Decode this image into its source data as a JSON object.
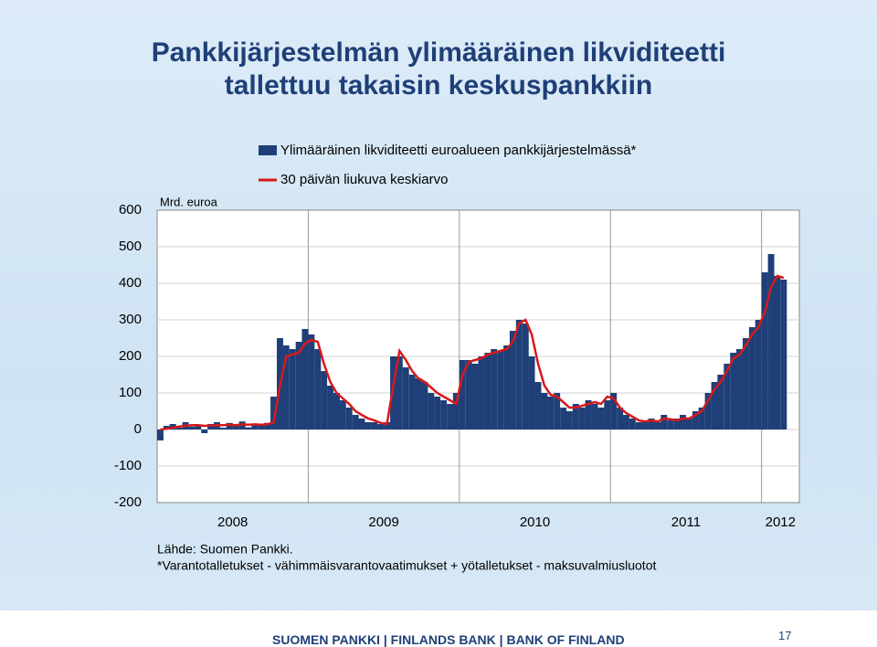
{
  "slide": {
    "title_lines": [
      "Pankkijärjestelmän ylimääräinen likviditeetti",
      "tallettuu takaisin keskuspankkiin"
    ],
    "source": "Lähde: Suomen Pankki.",
    "footnote": "*Varantotalletukset - vähimmäisvarantovaatimukset + yötalletukset - maksuvalmiusluotot",
    "footer": "SUOMEN PANKKI | FINLANDS BANK | BANK OF FINLAND",
    "page_number": "17"
  },
  "chart_data": {
    "type": "bar-line",
    "y_label": "Mrd. euroa",
    "x": [
      2008,
      2008.042,
      2008.083,
      2008.125,
      2008.167,
      2008.208,
      2008.25,
      2008.292,
      2008.333,
      2008.375,
      2008.417,
      2008.458,
      2008.5,
      2008.542,
      2008.583,
      2008.625,
      2008.667,
      2008.708,
      2008.75,
      2008.792,
      2008.833,
      2008.875,
      2008.917,
      2008.958,
      2009,
      2009.042,
      2009.083,
      2009.125,
      2009.167,
      2009.208,
      2009.25,
      2009.292,
      2009.333,
      2009.375,
      2009.417,
      2009.458,
      2009.5,
      2009.542,
      2009.583,
      2009.625,
      2009.667,
      2009.708,
      2009.75,
      2009.792,
      2009.833,
      2009.875,
      2009.917,
      2009.958,
      2010,
      2010.042,
      2010.083,
      2010.125,
      2010.167,
      2010.208,
      2010.25,
      2010.292,
      2010.333,
      2010.375,
      2010.417,
      2010.458,
      2010.5,
      2010.542,
      2010.583,
      2010.625,
      2010.667,
      2010.708,
      2010.75,
      2010.792,
      2010.833,
      2010.875,
      2010.917,
      2010.958,
      2011,
      2011.042,
      2011.083,
      2011.125,
      2011.167,
      2011.208,
      2011.25,
      2011.292,
      2011.333,
      2011.375,
      2011.417,
      2011.458,
      2011.5,
      2011.542,
      2011.583,
      2011.625,
      2011.667,
      2011.708,
      2011.75,
      2011.792,
      2011.833,
      2011.875,
      2011.917,
      2011.958,
      2012,
      2012.042,
      2012.083,
      2012.125
    ],
    "series": [
      {
        "name": "Ylimääräinen likviditeetti euroalueen pankkijärjestelmässä*",
        "kind": "bar",
        "color": "#1f3f78",
        "values": [
          -30,
          10,
          15,
          5,
          20,
          8,
          12,
          -10,
          15,
          20,
          5,
          18,
          10,
          22,
          6,
          15,
          12,
          18,
          90,
          250,
          230,
          220,
          240,
          275,
          260,
          220,
          160,
          120,
          100,
          80,
          60,
          40,
          30,
          20,
          20,
          15,
          20,
          200,
          200,
          170,
          150,
          140,
          130,
          100,
          90,
          80,
          70,
          100,
          190,
          190,
          180,
          200,
          210,
          220,
          215,
          230,
          270,
          300,
          290,
          200,
          130,
          100,
          90,
          100,
          60,
          50,
          70,
          60,
          80,
          70,
          60,
          80,
          100,
          60,
          40,
          30,
          20,
          25,
          30,
          20,
          40,
          25,
          30,
          40,
          30,
          50,
          60,
          100,
          130,
          150,
          180,
          210,
          220,
          250,
          280,
          300,
          430,
          480,
          420,
          410
        ]
      },
      {
        "name": "30 päivän liukuva keskiarvo",
        "kind": "line",
        "color": "#d7191c",
        "values": [
          0,
          2,
          5,
          8,
          10,
          12,
          12,
          10,
          11,
          12,
          12,
          13,
          12,
          14,
          13,
          14,
          13,
          14,
          20,
          120,
          200,
          205,
          210,
          235,
          245,
          240,
          180,
          130,
          100,
          85,
          70,
          50,
          40,
          30,
          25,
          18,
          15,
          120,
          215,
          190,
          160,
          140,
          130,
          115,
          100,
          90,
          80,
          70,
          150,
          185,
          190,
          195,
          205,
          210,
          215,
          220,
          240,
          290,
          300,
          260,
          180,
          120,
          95,
          90,
          75,
          60,
          60,
          65,
          70,
          75,
          70,
          90,
          85,
          60,
          45,
          35,
          25,
          22,
          25,
          22,
          30,
          28,
          25,
          30,
          30,
          40,
          50,
          80,
          110,
          130,
          160,
          195,
          205,
          230,
          260,
          280,
          320,
          390,
          420,
          415
        ]
      }
    ],
    "xlim": [
      2008,
      2012.25
    ],
    "xticks": [
      2008,
      2009,
      2010,
      2011,
      2012
    ],
    "ylim": [
      -200,
      600
    ],
    "yticks": [
      -200,
      -100,
      0,
      100,
      200,
      300,
      400,
      500,
      600
    ],
    "grid": true
  }
}
